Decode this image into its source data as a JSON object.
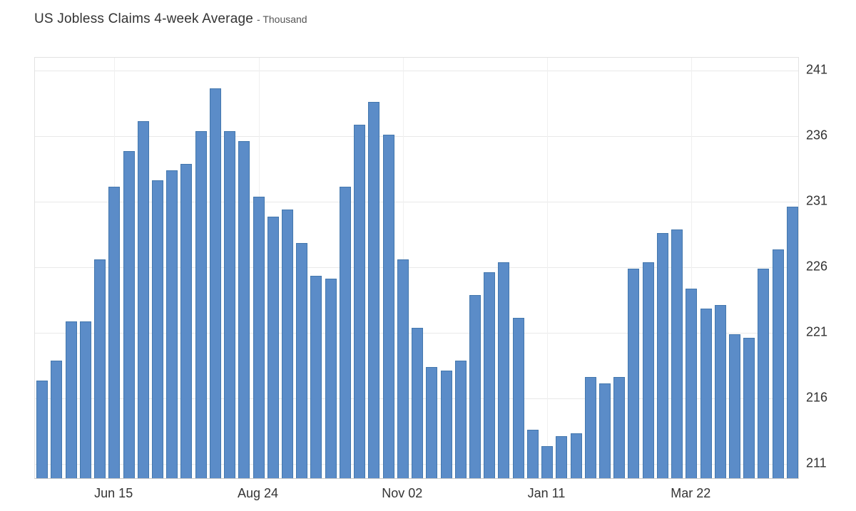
{
  "header": {
    "title": "US Jobless Claims 4-week Average",
    "subtitle": "- Thousand"
  },
  "chart_data": {
    "type": "bar",
    "title": "US Jobless Claims 4-week Average",
    "unit_label": "Thousand",
    "legend": "none",
    "grid": true,
    "y_axis_side": "right",
    "bar_color": "#5b8cc8",
    "bar_border_color": "#4377ad",
    "y_ticks": [
      211,
      216,
      221,
      226,
      231,
      236,
      241
    ],
    "ylim": [
      209.8,
      241.95
    ],
    "x_tick_labels": [
      "Jun 15",
      "Aug 24",
      "Nov 02",
      "Jan 11",
      "Mar 22"
    ],
    "x_tick_indices": [
      5,
      15,
      25,
      35,
      45
    ],
    "values": [
      217.25,
      218.75,
      221.75,
      221.75,
      226.5,
      232.0,
      234.75,
      237.0,
      232.5,
      233.25,
      233.75,
      236.25,
      239.5,
      236.25,
      235.5,
      231.25,
      229.75,
      230.25,
      227.75,
      225.25,
      225.0,
      232.0,
      236.75,
      238.5,
      236.0,
      226.5,
      221.25,
      218.25,
      218.0,
      218.75,
      223.75,
      225.5,
      226.25,
      222.0,
      213.5,
      212.25,
      213.0,
      213.25,
      217.5,
      217.0,
      217.5,
      225.75,
      226.25,
      228.5,
      228.75,
      224.25,
      222.75,
      223.0,
      220.75,
      220.5,
      225.75,
      227.25,
      230.5
    ]
  }
}
